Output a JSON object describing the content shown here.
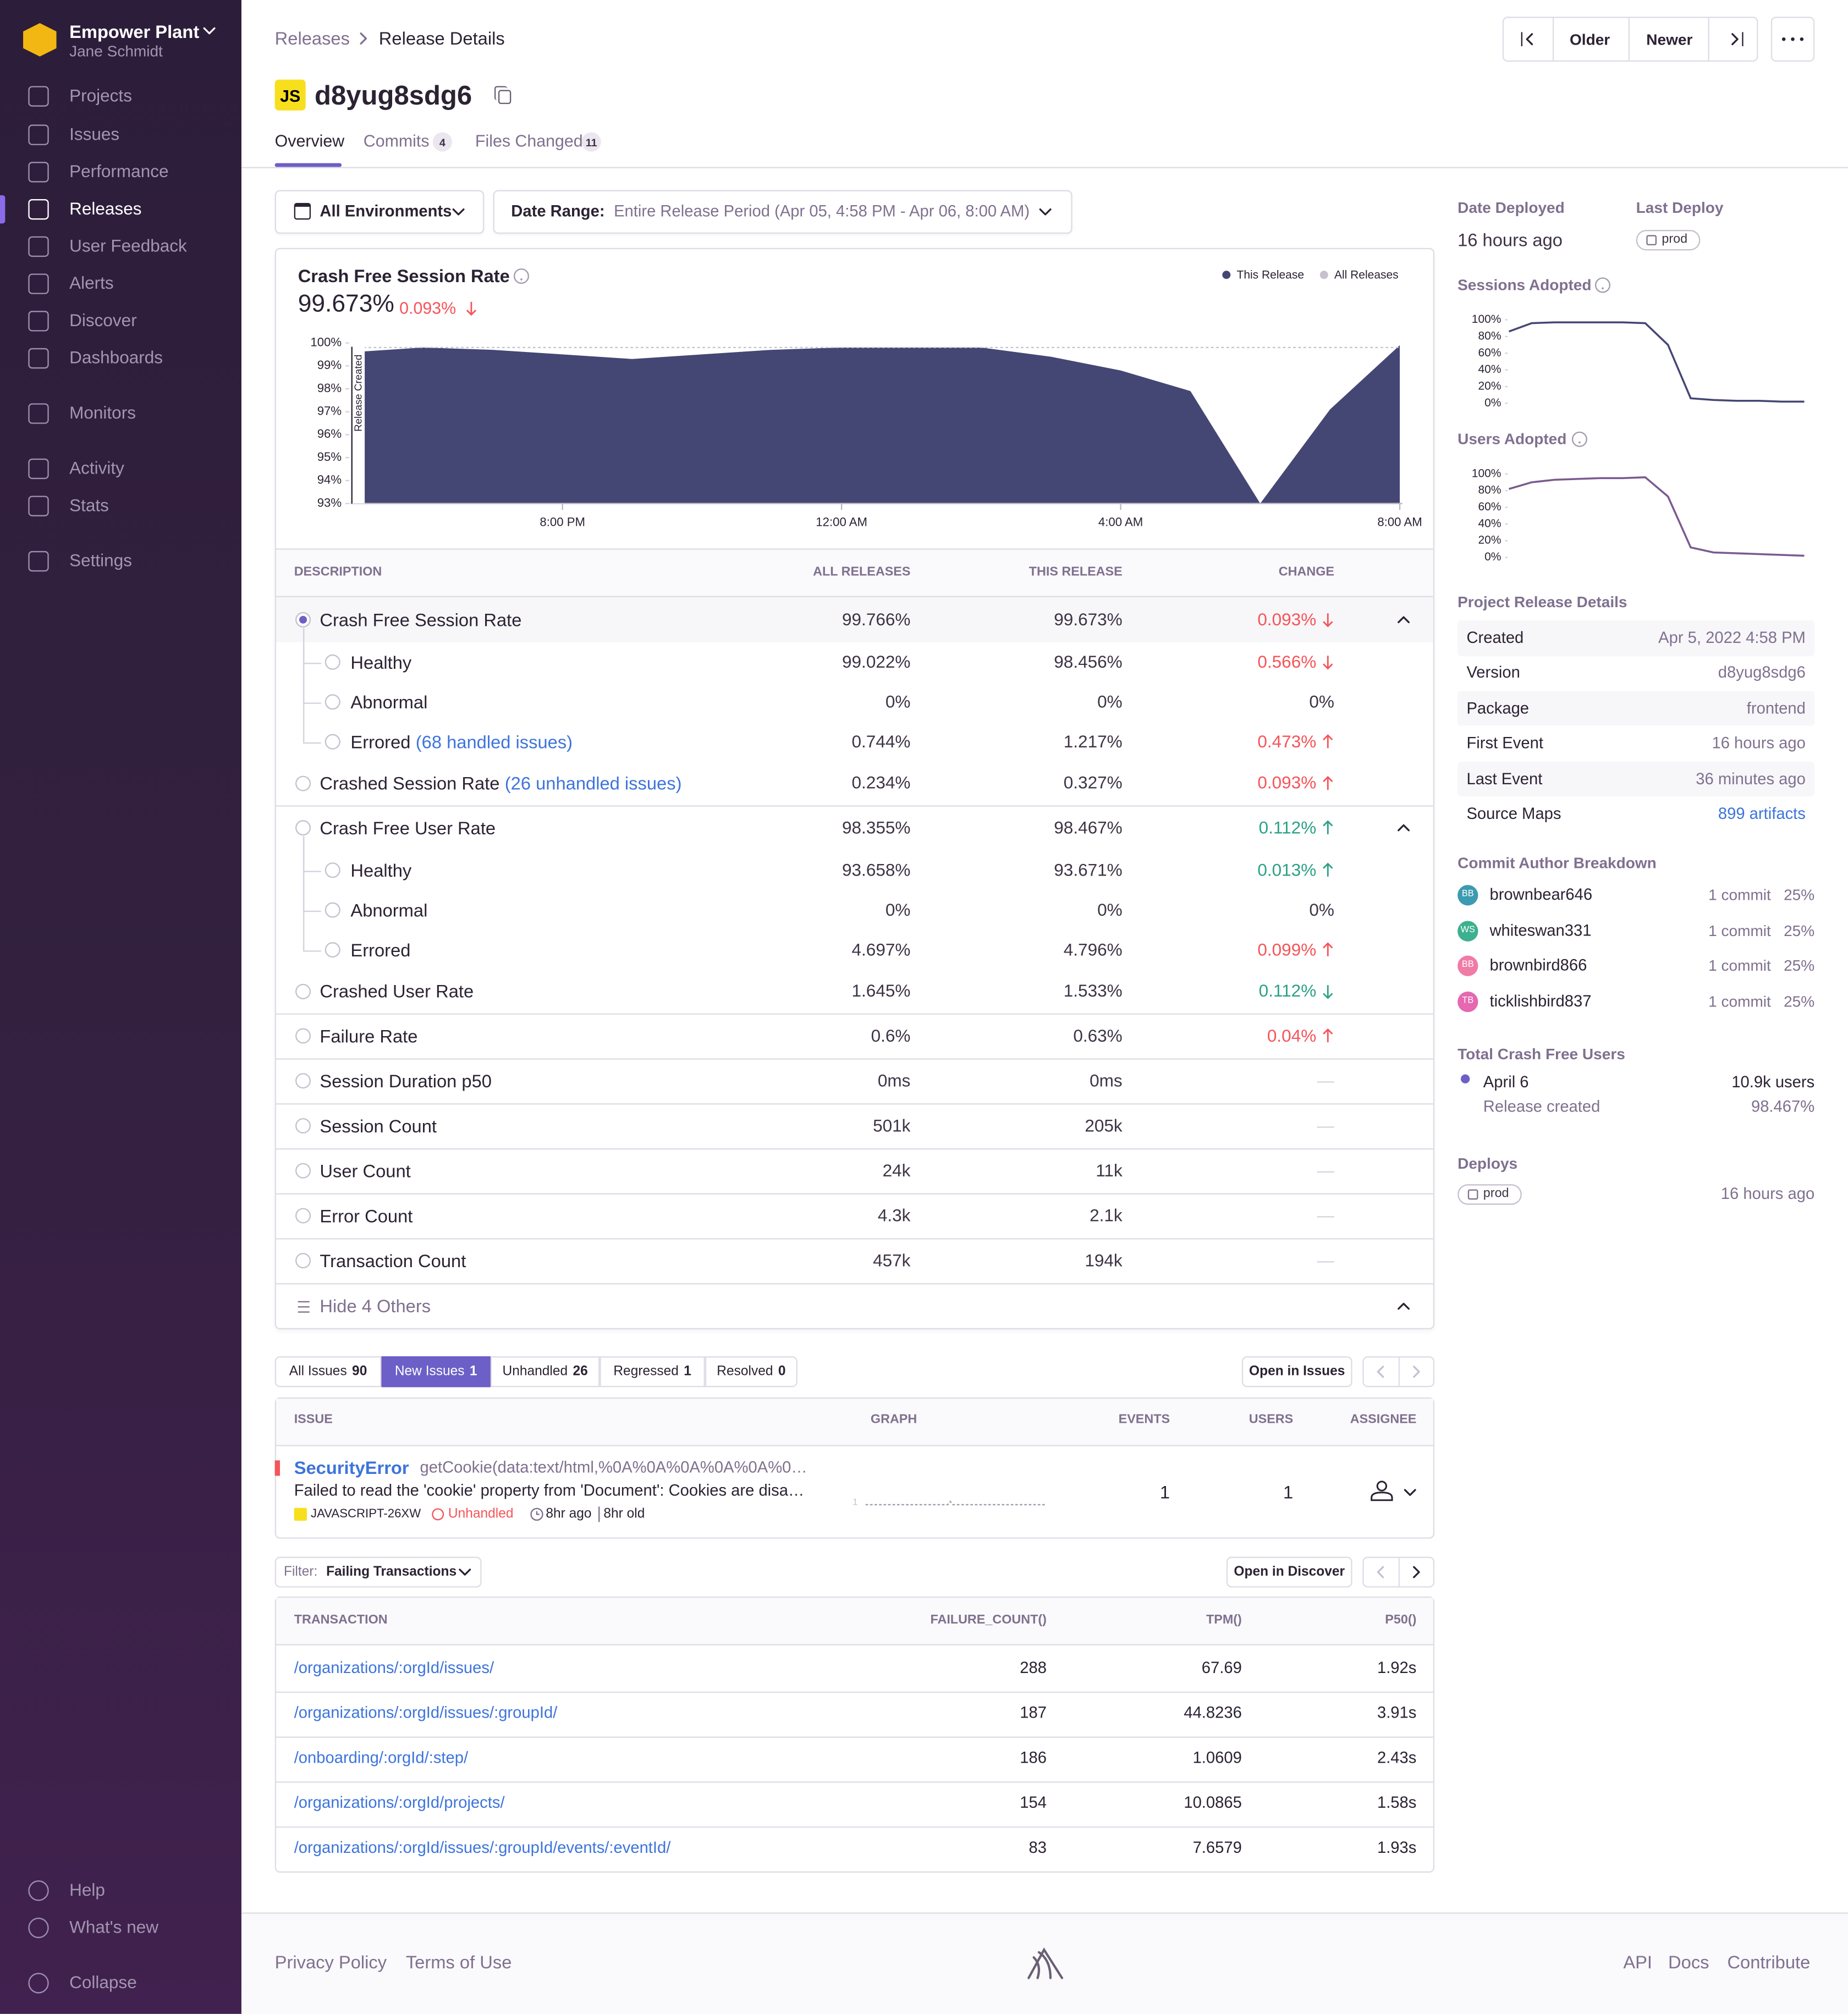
{
  "sidebar": {
    "org": "Empower Plant",
    "user": "Jane Schmidt",
    "nav": [
      "Projects",
      "Issues",
      "Performance",
      "Releases",
      "User Feedback",
      "Alerts",
      "Discover",
      "Dashboards",
      "Monitors",
      "Activity",
      "Stats",
      "Settings"
    ],
    "active": "Releases",
    "footer": [
      "Help",
      "What's new",
      "Collapse"
    ]
  },
  "header": {
    "breadcrumbs": [
      "Releases",
      "Release Details"
    ],
    "platform": "JS",
    "version": "d8yug8sdg6",
    "pager": [
      "Older",
      "Newer"
    ],
    "tabs": [
      {
        "label": "Overview"
      },
      {
        "label": "Commits",
        "count": 4
      },
      {
        "label": "Files Changed",
        "count": 11
      }
    ],
    "active_tab": "Overview"
  },
  "filters": {
    "environment": "All Environments",
    "date_label": "Date Range:",
    "date_value": "Entire Release Period (Apr 05, 4:58 PM - Apr 06, 8:00 AM)"
  },
  "crash_chart": {
    "type": "area",
    "title": "Crash Free Session Rate",
    "summary": "99.673%",
    "summary_change": "0.093%",
    "marker": {
      "x": 17,
      "label": "Release Created"
    },
    "x": [
      17,
      18,
      19,
      20,
      21,
      22,
      23,
      24,
      25,
      26,
      27,
      28,
      29,
      30,
      31,
      32
    ],
    "series": [
      {
        "name": "This Release",
        "color": "#444674",
        "style": "area",
        "values": [
          99.6,
          99.8,
          99.7,
          99.5,
          99.3,
          99.5,
          99.7,
          99.8,
          99.8,
          99.8,
          99.4,
          98.8,
          97.9,
          93.0,
          97.1,
          99.9
        ]
      },
      {
        "name": "All Releases",
        "color": "#c6c0cf",
        "style": "dotted",
        "values": [
          99.8,
          99.8,
          99.8,
          99.8,
          99.8,
          99.8,
          99.8,
          99.8,
          99.8,
          99.8,
          99.8,
          99.8,
          99.8,
          99.8,
          99.8,
          99.8
        ]
      }
    ],
    "xlim": [
      17,
      32
    ],
    "xticks": [
      {
        "value": 20,
        "label": "8:00 PM"
      },
      {
        "value": 24,
        "label": "12:00 AM"
      },
      {
        "value": 28,
        "label": "4:00 AM"
      },
      {
        "value": 32,
        "label": "8:00 AM"
      }
    ],
    "ylim": [
      93,
      100
    ],
    "yticks": [
      {
        "value": 93,
        "label": "93%"
      },
      {
        "value": 94,
        "label": "94%"
      },
      {
        "value": 95,
        "label": "95%"
      },
      {
        "value": 96,
        "label": "96%"
      },
      {
        "value": 97,
        "label": "97%"
      },
      {
        "value": 98,
        "label": "98%"
      },
      {
        "value": 99,
        "label": "99%"
      },
      {
        "value": 100,
        "label": "100%"
      }
    ]
  },
  "metrics": {
    "columns": [
      "DESCRIPTION",
      "ALL RELEASES",
      "THIS RELEASE",
      "CHANGE"
    ],
    "groups": [
      [
        {
          "label": "Crash Free Session Rate",
          "all": "99.766%",
          "this": "99.673%",
          "change": "0.093%",
          "trend": "down",
          "status": "bad",
          "selected": true
        },
        {
          "label": "Healthy",
          "all": "99.022%",
          "this": "98.456%",
          "change": "0.566%",
          "trend": "down",
          "status": "bad",
          "child": true
        },
        {
          "label": "Abnormal",
          "all": "0%",
          "this": "0%",
          "change": "0%",
          "child": true
        },
        {
          "label": "Errored",
          "link": "(68 handled issues)",
          "all": "0.744%",
          "this": "1.217%",
          "change": "0.473%",
          "trend": "up",
          "status": "bad",
          "child": true
        },
        {
          "label": "Crashed Session Rate",
          "link": "(26 unhandled issues)",
          "all": "0.234%",
          "this": "0.327%",
          "change": "0.093%",
          "trend": "up",
          "status": "bad"
        }
      ],
      [
        {
          "label": "Crash Free User Rate",
          "all": "98.355%",
          "this": "98.467%",
          "change": "0.112%",
          "trend": "up",
          "status": "good"
        },
        {
          "label": "Healthy",
          "all": "93.658%",
          "this": "93.671%",
          "change": "0.013%",
          "trend": "up",
          "status": "good",
          "child": true
        },
        {
          "label": "Abnormal",
          "all": "0%",
          "this": "0%",
          "change": "0%",
          "child": true
        },
        {
          "label": "Errored",
          "all": "4.697%",
          "this": "4.796%",
          "change": "0.099%",
          "trend": "up",
          "status": "bad",
          "child": true
        },
        {
          "label": "Crashed User Rate",
          "all": "1.645%",
          "this": "1.533%",
          "change": "0.112%",
          "trend": "down",
          "status": "good"
        }
      ],
      [
        {
          "label": "Failure Rate",
          "all": "0.6%",
          "this": "0.63%",
          "change": "0.04%",
          "trend": "up",
          "status": "bad"
        }
      ],
      [
        {
          "label": "Session Duration p50",
          "all": "0ms",
          "this": "0ms",
          "change": "—"
        }
      ],
      [
        {
          "label": "Session Count",
          "all": "501k",
          "this": "205k",
          "change": "—"
        }
      ],
      [
        {
          "label": "User Count",
          "all": "24k",
          "this": "11k",
          "change": "—"
        }
      ],
      [
        {
          "label": "Error Count",
          "all": "4.3k",
          "this": "2.1k",
          "change": "—"
        }
      ],
      [
        {
          "label": "Transaction Count",
          "all": "457k",
          "this": "194k",
          "change": "—"
        }
      ]
    ],
    "toggle": "Hide 4 Others"
  },
  "issues": {
    "tabs": [
      {
        "label": "All Issues",
        "count": 90
      },
      {
        "label": "New Issues",
        "count": 1
      },
      {
        "label": "Unhandled",
        "count": 26
      },
      {
        "label": "Regressed",
        "count": 1
      },
      {
        "label": "Resolved",
        "count": 0
      }
    ],
    "active_tab": "New Issues",
    "open_button": "Open in Issues",
    "columns": [
      "ISSUE",
      "GRAPH",
      "EVENTS",
      "USERS",
      "ASSIGNEE"
    ],
    "rows": [
      {
        "title": "SecurityError",
        "culprit": "getCookie(data:text/html,%0A%0A%0A%0A%0A%0…",
        "message": "Failed to read the 'cookie' property from 'Document': Cookies are disa…",
        "short_id": "JAVASCRIPT-26XW",
        "status": "Unhandled",
        "last_seen": "8hr ago",
        "age": "8hr old",
        "graph_label": "1",
        "events": 1,
        "users": 1
      }
    ]
  },
  "transactions": {
    "filter_label": "Filter:",
    "filter_value": "Failing Transactions",
    "open_button": "Open in Discover",
    "columns": [
      "TRANSACTION",
      "FAILURE_COUNT()",
      "TPM()",
      "P50()"
    ],
    "rows": [
      [
        "/organizations/:orgId/issues/",
        288,
        67.69,
        "1.92s"
      ],
      [
        "/organizations/:orgId/issues/:groupId/",
        187,
        44.8236,
        "3.91s"
      ],
      [
        "/onboarding/:orgId/:step/",
        186,
        1.0609,
        "2.43s"
      ],
      [
        "/organizations/:orgId/projects/",
        154,
        10.0865,
        "1.58s"
      ],
      [
        "/organizations/:orgId/issues/:groupId/events/:eventId/",
        83,
        7.6579,
        "1.93s"
      ]
    ]
  },
  "deploy_info": {
    "date_label": "Date Deployed",
    "date_value": "16 hours ago",
    "last_label": "Last Deploy",
    "last_value": "prod"
  },
  "sessions_adopted": {
    "type": "line",
    "title": "Sessions Adopted",
    "color": "#444674",
    "values": [
      86,
      96,
      97,
      97,
      97,
      97,
      96,
      70,
      6,
      4,
      3,
      3,
      2,
      2
    ],
    "ylim": [
      0,
      100
    ],
    "yticks": [
      {
        "value": 0,
        "label": "0%"
      },
      {
        "value": 20,
        "label": "20%"
      },
      {
        "value": 40,
        "label": "40%"
      },
      {
        "value": 60,
        "label": "60%"
      },
      {
        "value": 80,
        "label": "80%"
      },
      {
        "value": 100,
        "label": "100%"
      }
    ]
  },
  "users_adopted": {
    "type": "line",
    "title": "Users Adopted",
    "color": "#7a5a8f",
    "values": [
      82,
      90,
      93,
      94,
      95,
      95,
      96,
      73,
      12,
      6,
      5,
      4,
      3,
      2
    ],
    "ylim": [
      0,
      100
    ],
    "yticks": [
      {
        "value": 0,
        "label": "0%"
      },
      {
        "value": 20,
        "label": "20%"
      },
      {
        "value": 40,
        "label": "40%"
      },
      {
        "value": 60,
        "label": "60%"
      },
      {
        "value": 80,
        "label": "80%"
      },
      {
        "value": 100,
        "label": "100%"
      }
    ]
  },
  "release_details": {
    "title": "Project Release Details",
    "rows": [
      {
        "label": "Created",
        "value": "Apr 5, 2022 4:58 PM"
      },
      {
        "label": "Version",
        "value": "d8yug8sdg6"
      },
      {
        "label": "Package",
        "value": "frontend"
      },
      {
        "label": "First Event",
        "value": "16 hours ago"
      },
      {
        "label": "Last Event",
        "value": "36 minutes ago"
      },
      {
        "label": "Source Maps",
        "value": "899 artifacts",
        "link": true
      }
    ]
  },
  "authors": {
    "title": "Commit Author Breakdown",
    "rows": [
      {
        "initials": "BB",
        "name": "brownbear646",
        "commits": "1 commit",
        "share": "25%",
        "color": "#3c9bb0"
      },
      {
        "initials": "WS",
        "name": "whiteswan331",
        "commits": "1 commit",
        "share": "25%",
        "color": "#3cb08f"
      },
      {
        "initials": "BB",
        "name": "brownbird866",
        "commits": "1 commit",
        "share": "25%",
        "color": "#f07ba6"
      },
      {
        "initials": "TB",
        "name": "ticklishbird837",
        "commits": "1 commit",
        "share": "25%",
        "color": "#e568b0"
      }
    ]
  },
  "crash_free_users": {
    "title": "Total Crash Free Users",
    "date": "April 6",
    "users": "10.9k users",
    "note": "Release created",
    "rate": "98.467%"
  },
  "deploys": {
    "title": "Deploys",
    "rows": [
      {
        "env": "prod",
        "time": "16 hours ago"
      }
    ]
  },
  "footer": {
    "left": [
      "Privacy Policy",
      "Terms of Use"
    ],
    "right": [
      "API",
      "Docs",
      "Contribute"
    ]
  }
}
